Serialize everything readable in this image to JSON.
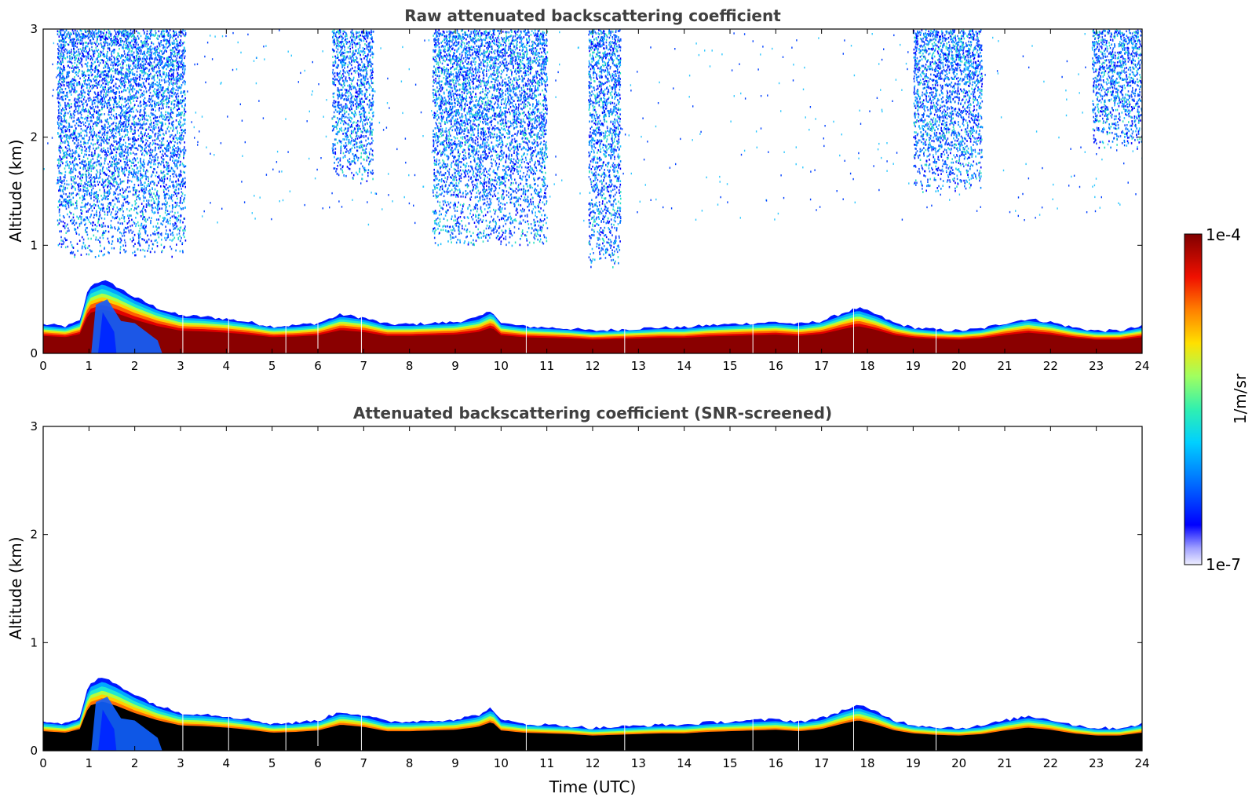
{
  "chart_data": [
    {
      "type": "heatmap",
      "title": "Raw attenuated backscattering coefficient",
      "xlabel": "",
      "ylabel": "Altitude (km)",
      "xlim": [
        0,
        24
      ],
      "ylim": [
        0,
        3
      ],
      "xticks": [
        "0",
        "1",
        "2",
        "3",
        "4",
        "5",
        "6",
        "7",
        "8",
        "9",
        "10",
        "11",
        "12",
        "13",
        "14",
        "15",
        "16",
        "17",
        "18",
        "19",
        "20",
        "21",
        "22",
        "23",
        "24"
      ],
      "yticks": [
        "0",
        "1",
        "2",
        "3"
      ],
      "boundary_layer_top_km": {
        "time_utc": [
          0,
          0.5,
          0.8,
          1.0,
          1.3,
          1.6,
          2.0,
          2.5,
          3.0,
          3.5,
          4.0,
          4.5,
          5.0,
          5.5,
          6.0,
          6.5,
          7.0,
          7.5,
          8.0,
          8.5,
          9.0,
          9.5,
          9.8,
          10.0,
          10.5,
          11.0,
          11.5,
          12.0,
          12.5,
          13.0,
          13.5,
          14.0,
          14.5,
          15.0,
          15.5,
          16.0,
          16.5,
          17.0,
          17.5,
          17.8,
          18.2,
          18.6,
          19.0,
          19.5,
          20.0,
          20.5,
          21.0,
          21.5,
          22.0,
          22.5,
          23.0,
          23.5,
          24.0
        ],
        "altitude": [
          0.27,
          0.25,
          0.3,
          0.62,
          0.68,
          0.62,
          0.52,
          0.42,
          0.35,
          0.34,
          0.32,
          0.29,
          0.25,
          0.26,
          0.28,
          0.36,
          0.33,
          0.27,
          0.27,
          0.28,
          0.29,
          0.33,
          0.4,
          0.28,
          0.25,
          0.24,
          0.23,
          0.21,
          0.22,
          0.23,
          0.24,
          0.24,
          0.26,
          0.27,
          0.28,
          0.29,
          0.27,
          0.3,
          0.38,
          0.42,
          0.36,
          0.28,
          0.24,
          0.22,
          0.21,
          0.23,
          0.28,
          0.32,
          0.29,
          0.24,
          0.21,
          0.21,
          0.25
        ]
      },
      "cloud_regions": [
        {
          "t_start": 0.3,
          "t_end": 3.1,
          "alt_bottom": 0.9,
          "alt_top": 3.0
        },
        {
          "t_start": 6.3,
          "t_end": 7.2,
          "alt_bottom": 1.6,
          "alt_top": 3.0
        },
        {
          "t_start": 8.5,
          "t_end": 11.0,
          "alt_bottom": 1.0,
          "alt_top": 3.0
        },
        {
          "t_start": 11.9,
          "t_end": 12.6,
          "alt_bottom": 0.8,
          "alt_top": 3.0
        },
        {
          "t_start": 19.0,
          "t_end": 20.5,
          "alt_bottom": 1.5,
          "alt_top": 3.0
        },
        {
          "t_start": 22.9,
          "t_end": 24.0,
          "alt_bottom": 1.9,
          "alt_top": 3.0
        }
      ]
    },
    {
      "type": "heatmap",
      "title": "Attenuated backscattering coefficient (SNR-screened)",
      "xlabel": "Time (UTC)",
      "ylabel": "Altitude (km)",
      "xlim": [
        0,
        24
      ],
      "ylim": [
        0,
        3
      ],
      "xticks": [
        "0",
        "1",
        "2",
        "3",
        "4",
        "5",
        "6",
        "7",
        "8",
        "9",
        "10",
        "11",
        "12",
        "13",
        "14",
        "15",
        "16",
        "17",
        "18",
        "19",
        "20",
        "21",
        "22",
        "23",
        "24"
      ],
      "yticks": [
        "0",
        "1",
        "2",
        "3"
      ]
    }
  ],
  "colorbar": {
    "max_label": "1e-4",
    "min_label": "1e-7",
    "unit_label": "1/m/sr",
    "colors": [
      "#e8e8ff",
      "#b8b8ff",
      "#8080ff",
      "#0000ff",
      "#0060ff",
      "#00c0ff",
      "#20e0c0",
      "#80ff80",
      "#d0ff30",
      "#ffe000",
      "#ff9000",
      "#ff3000",
      "#d00000",
      "#800000"
    ]
  }
}
